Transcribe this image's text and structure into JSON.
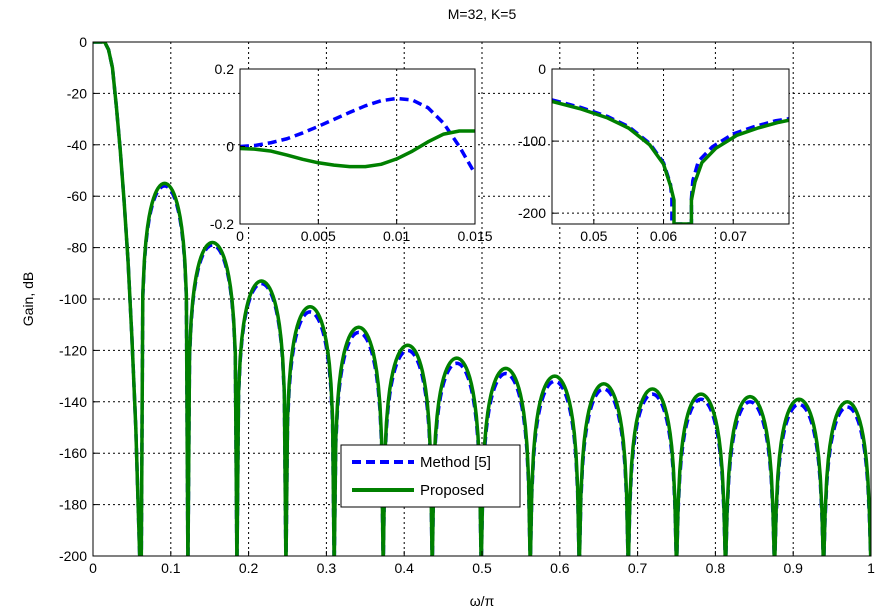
{
  "chart_data": [
    {
      "id": "main",
      "type": "line",
      "title": "M=32, K=5",
      "xlabel": "ω/π",
      "ylabel": "Gain, dB",
      "xlim": [
        0,
        1
      ],
      "ylim": [
        -200,
        0
      ],
      "xticks": [
        0,
        0.1,
        0.2,
        0.3,
        0.4,
        0.5,
        0.6,
        0.7,
        0.8,
        0.9,
        1
      ],
      "xtick_labels": [
        "0",
        "0.1",
        "0.2",
        "0.3",
        "0.4",
        "0.5",
        "0.6",
        "0.7",
        "0.8",
        "0.9",
        "1"
      ],
      "yticks": [
        0,
        -20,
        -40,
        -60,
        -80,
        -100,
        -120,
        -140,
        -160,
        -180,
        -200
      ],
      "ytick_labels": [
        "0",
        "-20",
        "-40",
        "-60",
        "-80",
        "-100",
        "-120",
        "-140",
        "-160",
        "-180",
        "-200"
      ],
      "grid": true,
      "legend": "bottom-center",
      "passband": {
        "edge": 0.015,
        "gain": 0
      },
      "transition": [
        [
          0.015,
          0
        ],
        [
          0.02,
          -3
        ],
        [
          0.025,
          -10
        ],
        [
          0.03,
          -25
        ],
        [
          0.035,
          -42
        ],
        [
          0.04,
          -62
        ],
        [
          0.045,
          -85
        ],
        [
          0.05,
          -115
        ],
        [
          0.055,
          -150
        ],
        [
          0.06,
          -200
        ]
      ],
      "nulls": [
        0.062,
        0.122,
        0.185,
        0.248,
        0.31,
        0.373,
        0.436,
        0.499,
        0.562,
        0.625,
        0.688,
        0.75,
        0.813,
        0.876,
        0.939,
        1.0
      ],
      "lobe_peaks": [
        {
          "x": 0.092,
          "method5": -56,
          "proposed": -55
        },
        {
          "x": 0.153,
          "method5": -79,
          "proposed": -78
        },
        {
          "x": 0.216,
          "method5": -94,
          "proposed": -93
        },
        {
          "x": 0.279,
          "method5": -105,
          "proposed": -103
        },
        {
          "x": 0.342,
          "method5": -113,
          "proposed": -111
        },
        {
          "x": 0.404,
          "method5": -120,
          "proposed": -118
        },
        {
          "x": 0.467,
          "method5": -125,
          "proposed": -123
        },
        {
          "x": 0.53,
          "method5": -129,
          "proposed": -127
        },
        {
          "x": 0.593,
          "method5": -132,
          "proposed": -130
        },
        {
          "x": 0.656,
          "method5": -135,
          "proposed": -133
        },
        {
          "x": 0.718,
          "method5": -137,
          "proposed": -135
        },
        {
          "x": 0.781,
          "method5": -139,
          "proposed": -137
        },
        {
          "x": 0.844,
          "method5": -140,
          "proposed": -138
        },
        {
          "x": 0.907,
          "method5": -141,
          "proposed": -139
        },
        {
          "x": 0.97,
          "method5": -142,
          "proposed": -140
        }
      ],
      "series": [
        {
          "key": "method5",
          "name": "Method [5]",
          "color": "#0000ff",
          "style": "dashed"
        },
        {
          "key": "proposed",
          "name": "Proposed",
          "color": "#008000",
          "style": "solid"
        }
      ]
    },
    {
      "id": "inset-passband",
      "type": "line",
      "xlim": [
        0,
        0.015
      ],
      "ylim": [
        -0.2,
        0.2
      ],
      "xticks": [
        0,
        0.005,
        0.01,
        0.015
      ],
      "xtick_labels": [
        "0",
        "0.005",
        "0.01",
        "0.015"
      ],
      "yticks": [
        0.2,
        0,
        -0.2
      ],
      "ytick_labels": [
        "0.2",
        "0",
        "-0.2"
      ],
      "grid": true,
      "series": [
        {
          "name": "Method [5]",
          "color": "#0000ff",
          "style": "dashed",
          "x": [
            0,
            0.001,
            0.002,
            0.003,
            0.004,
            0.005,
            0.006,
            0.007,
            0.008,
            0.009,
            0.01,
            0.011,
            0.012,
            0.013,
            0.014,
            0.015
          ],
          "y": [
            0.0,
            0.003,
            0.01,
            0.02,
            0.035,
            0.052,
            0.07,
            0.088,
            0.105,
            0.118,
            0.124,
            0.12,
            0.1,
            0.06,
            0.0,
            -0.07
          ]
        },
        {
          "name": "Proposed",
          "color": "#008000",
          "style": "solid",
          "x": [
            0,
            0.001,
            0.002,
            0.003,
            0.004,
            0.005,
            0.006,
            0.007,
            0.008,
            0.009,
            0.01,
            0.011,
            0.012,
            0.013,
            0.014,
            0.015
          ],
          "y": [
            -0.005,
            -0.007,
            -0.012,
            -0.022,
            -0.033,
            -0.042,
            -0.048,
            -0.052,
            -0.052,
            -0.046,
            -0.032,
            -0.012,
            0.012,
            0.032,
            0.04,
            0.04
          ]
        }
      ]
    },
    {
      "id": "inset-null",
      "type": "line",
      "xlim": [
        0.044,
        0.078
      ],
      "ylim": [
        -215,
        0
      ],
      "xticks": [
        0.05,
        0.06,
        0.07
      ],
      "xtick_labels": [
        "0.05",
        "0.06",
        "0.07"
      ],
      "yticks": [
        0,
        -100,
        -200
      ],
      "ytick_labels": [
        "0",
        "-100",
        "-200"
      ],
      "grid": true,
      "series": [
        {
          "name": "Method [5]",
          "color": "#0000ff",
          "style": "dashed",
          "x": [
            0.044,
            0.048,
            0.052,
            0.055,
            0.058,
            0.06,
            0.061,
            0.0612,
            0.0612,
            0.064,
            0.064,
            0.0642,
            0.065,
            0.067,
            0.07,
            0.073,
            0.076,
            0.078
          ],
          "y": [
            -43,
            -53,
            -66,
            -80,
            -103,
            -130,
            -160,
            -180,
            -215,
            -215,
            -180,
            -155,
            -128,
            -108,
            -90,
            -80,
            -72,
            -69
          ]
        },
        {
          "name": "Proposed",
          "color": "#008000",
          "style": "solid",
          "x": [
            0.044,
            0.048,
            0.052,
            0.055,
            0.058,
            0.06,
            0.061,
            0.0615,
            0.0615,
            0.064,
            0.064,
            0.0645,
            0.0655,
            0.0675,
            0.0705,
            0.0735,
            0.0765,
            0.078
          ],
          "y": [
            -45,
            -55,
            -68,
            -82,
            -105,
            -132,
            -162,
            -182,
            -215,
            -215,
            -182,
            -157,
            -130,
            -110,
            -92,
            -82,
            -74,
            -71
          ]
        }
      ]
    }
  ]
}
